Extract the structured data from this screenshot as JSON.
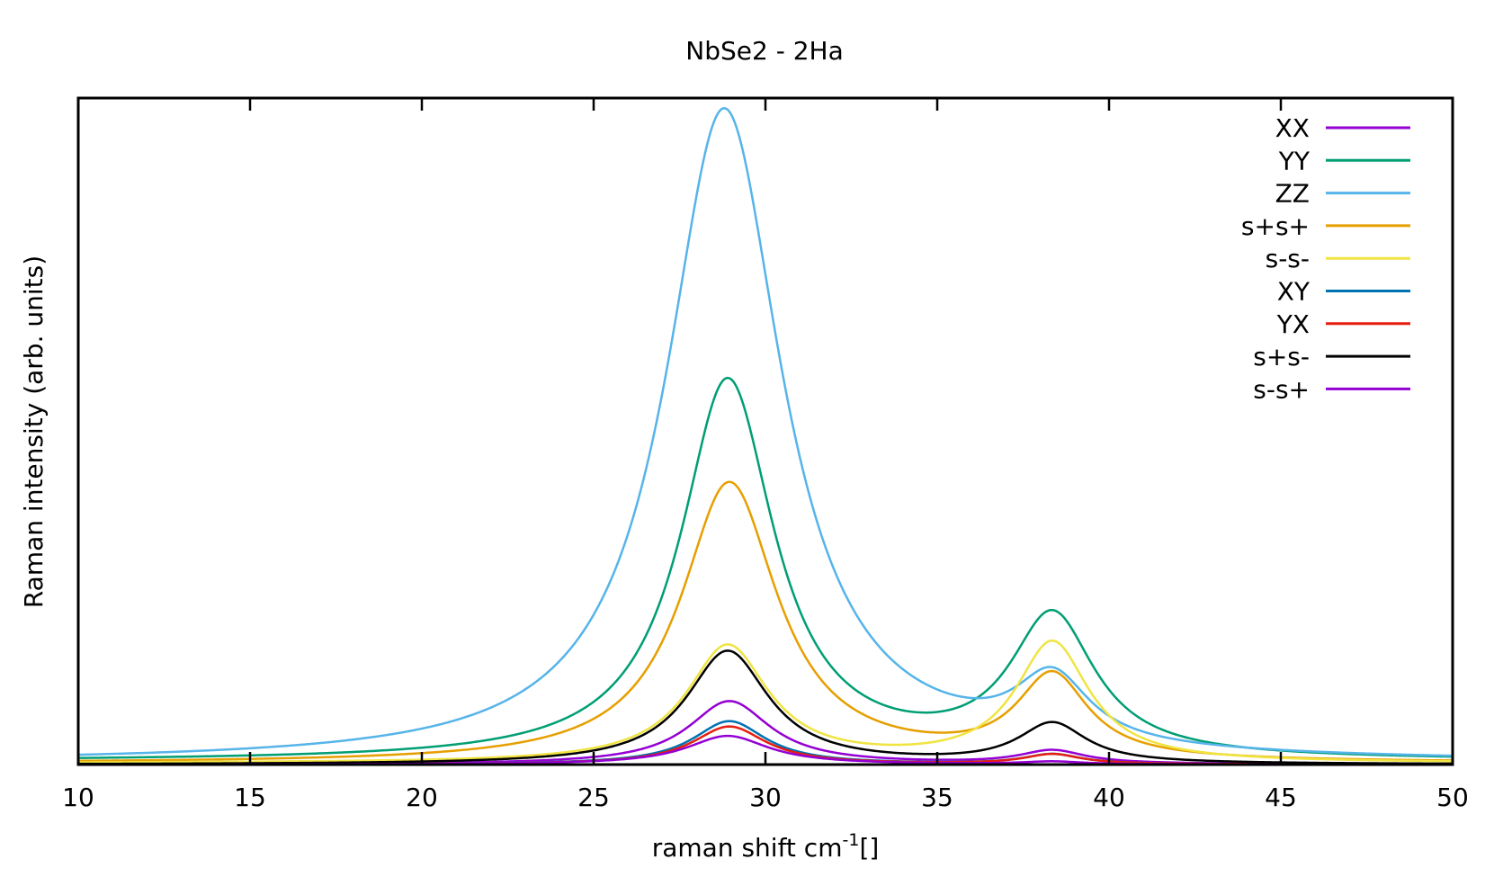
{
  "chart_data": {
    "type": "line",
    "title": "NbSe2 - 2Ha",
    "xlabel": {
      "prefix": "raman shift cm",
      "superscript": "-1",
      "suffix": "[]"
    },
    "ylabel": "Raman intensity (arb. units)",
    "xlim": [
      10,
      50
    ],
    "ylim": [
      0,
      100
    ],
    "xticks": [
      10,
      15,
      20,
      25,
      30,
      35,
      40,
      45,
      50
    ],
    "yticks_labeled": false,
    "grid": false,
    "legend_position": "top-right",
    "peak_centers": [
      28.9,
      38.35
    ],
    "series": [
      {
        "name": "XX",
        "color": "#9400d3",
        "peaks": [
          {
            "center": 28.95,
            "width": 1.45,
            "amp": 9.5
          },
          {
            "center": 38.35,
            "width": 1.15,
            "amp": 2.0
          }
        ],
        "baseline": 0.0
      },
      {
        "name": "YY",
        "color": "#009e73",
        "peaks": [
          {
            "center": 28.9,
            "width": 1.65,
            "amp": 57.0
          },
          {
            "center": 38.35,
            "width": 1.5,
            "amp": 21.0
          }
        ],
        "baseline": 0.5
      },
      {
        "name": "ZZ",
        "color": "#56b4e9",
        "peaks": [
          {
            "center": 28.8,
            "width": 2.05,
            "amp": 98.0
          },
          {
            "center": 38.35,
            "width": 1.3,
            "amp": 10.0
          }
        ],
        "baseline": 0.3
      },
      {
        "name": "s+s+",
        "color": "#e69f00",
        "peaks": [
          {
            "center": 28.95,
            "width": 1.7,
            "amp": 42.0
          },
          {
            "center": 38.35,
            "width": 1.25,
            "amp": 12.5
          }
        ],
        "baseline": 0.2
      },
      {
        "name": "s-s-",
        "color": "#f0e442",
        "peaks": [
          {
            "center": 28.9,
            "width": 1.45,
            "amp": 17.5
          },
          {
            "center": 38.35,
            "width": 1.3,
            "amp": 18.0
          }
        ],
        "baseline": 0.2
      },
      {
        "name": "XY",
        "color": "#0072b2",
        "peaks": [
          {
            "center": 28.95,
            "width": 1.3,
            "amp": 6.5
          },
          {
            "center": 38.35,
            "width": 1.0,
            "amp": 1.5
          }
        ],
        "baseline": 0.0
      },
      {
        "name": "YX",
        "color": "#e51e10",
        "peaks": [
          {
            "center": 28.95,
            "width": 1.3,
            "amp": 5.7
          },
          {
            "center": 38.35,
            "width": 1.0,
            "amp": 1.5
          }
        ],
        "baseline": 0.0
      },
      {
        "name": "s+s-",
        "color": "#000000",
        "peaks": [
          {
            "center": 28.9,
            "width": 1.45,
            "amp": 17.0
          },
          {
            "center": 38.35,
            "width": 1.2,
            "amp": 6.0
          }
        ],
        "baseline": 0.0
      },
      {
        "name": "s-s+",
        "color": "#9400d3",
        "peaks": [
          {
            "center": 28.9,
            "width": 1.45,
            "amp": 4.3
          },
          {
            "center": 38.35,
            "width": 1.0,
            "amp": 0.4
          }
        ],
        "baseline": 0.0
      }
    ]
  }
}
